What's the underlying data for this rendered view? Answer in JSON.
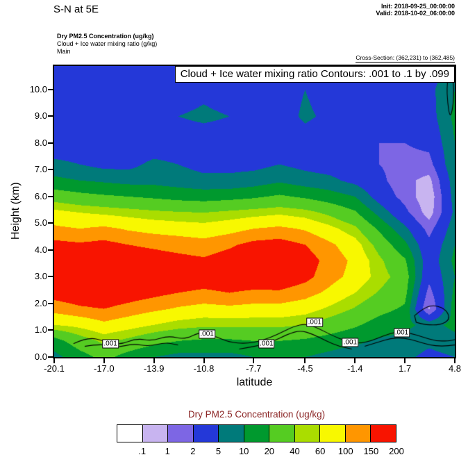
{
  "header": {
    "title": "S-N at 5E",
    "init_time": "Init: 2018-09-25_00:00:00",
    "valid_time": "Valid: 2018-10-02_06:00:00",
    "field_primary": "Dry PM2.5 Concentration   (ug/kg)",
    "field_secondary": "Cloud + Ice water mixing ratio   (g/kg)",
    "model_name": "Main",
    "cross_section": "Cross-Section: (362,231) to (362,485)"
  },
  "colorbar": {
    "title": "Dry PM2.5 Concentration  (ug/kg)",
    "labels": [
      ".1",
      "1",
      "2",
      "5",
      "10",
      "20",
      "40",
      "60",
      "100",
      "150",
      "200"
    ],
    "colors": [
      "#ffffff",
      "#c8b4f0",
      "#7d66e4",
      "#2438d8",
      "#007a7a",
      "#00992e",
      "#55cc22",
      "#aadd00",
      "#f8f800",
      "#ff9600",
      "#f81400"
    ]
  },
  "chart_data": {
    "type": "heatmap",
    "banner": "Cloud + Ice water mixing ratio Contours: .001 to .1 by .099",
    "xlabel": "latitude",
    "ylabel": "Height (km)",
    "fill_field": "Dry PM2.5 Concentration (ug/kg)",
    "fill_levels": [
      0.1,
      1,
      2,
      5,
      10,
      20,
      40,
      60,
      100,
      150,
      200
    ],
    "xlim": [
      -20.1,
      4.8
    ],
    "ylim": [
      0,
      10.88
    ],
    "x_ticks": [
      {
        "v": -20.1,
        "label": "-20.1"
      },
      {
        "v": -17.0,
        "label": "-17.0"
      },
      {
        "v": -13.9,
        "label": "-13.9"
      },
      {
        "v": -10.8,
        "label": "-10.8"
      },
      {
        "v": -7.7,
        "label": "-7.7"
      },
      {
        "v": -4.5,
        "label": "-4.5"
      },
      {
        "v": -1.4,
        "label": "-1.4"
      },
      {
        "v": 1.7,
        "label": "1.7"
      },
      {
        "v": 4.8,
        "label": "4.8"
      }
    ],
    "y_ticks": [
      {
        "v": 0,
        "label": "0.0"
      },
      {
        "v": 1,
        "label": "1.0"
      },
      {
        "v": 2,
        "label": "2.0"
      },
      {
        "v": 3,
        "label": "3.0"
      },
      {
        "v": 4,
        "label": "4.0"
      },
      {
        "v": 5,
        "label": "5.0"
      },
      {
        "v": 6,
        "label": "6.0"
      },
      {
        "v": 7,
        "label": "7.0"
      },
      {
        "v": 8,
        "label": "8.0"
      },
      {
        "v": 9,
        "label": "9.0"
      },
      {
        "v": 10,
        "label": "10.0"
      }
    ],
    "grid": {
      "lat": [
        -20.1,
        -18.5,
        -17.0,
        -15.5,
        -13.9,
        -12.4,
        -10.8,
        -9.2,
        -7.7,
        -6.1,
        -4.5,
        -3.0,
        -1.4,
        0.1,
        1.7,
        3.2,
        4.8
      ],
      "height_km": [
        0,
        0.6,
        1.2,
        1.8,
        2.4,
        3.0,
        3.6,
        4.2,
        4.8,
        5.4,
        6.0,
        6.6,
        7.2,
        8.0,
        9.0,
        10.0,
        10.9
      ],
      "values": [
        [
          8,
          15,
          25,
          15,
          10,
          8,
          8,
          8,
          10,
          10,
          10,
          8,
          6,
          5,
          6,
          4,
          5
        ],
        [
          15,
          30,
          45,
          35,
          25,
          20,
          18,
          18,
          20,
          20,
          18,
          15,
          12,
          9,
          8,
          6,
          8
        ],
        [
          60,
          70,
          90,
          75,
          60,
          50,
          45,
          45,
          45,
          45,
          40,
          30,
          22,
          15,
          12,
          8,
          12
        ],
        [
          120,
          140,
          150,
          130,
          110,
          95,
          85,
          90,
          85,
          85,
          75,
          55,
          38,
          25,
          18,
          0.9,
          15
        ],
        [
          180,
          200,
          210,
          190,
          170,
          150,
          140,
          150,
          140,
          140,
          120,
          90,
          60,
          38,
          25,
          1.5,
          12
        ],
        [
          200,
          220,
          230,
          220,
          210,
          195,
          185,
          195,
          200,
          210,
          170,
          120,
          85,
          50,
          30,
          2.5,
          10
        ],
        [
          200,
          200,
          210,
          190,
          180,
          170,
          160,
          185,
          210,
          220,
          185,
          130,
          90,
          45,
          22,
          3,
          12
        ],
        [
          170,
          160,
          170,
          150,
          140,
          130,
          120,
          140,
          170,
          180,
          150,
          110,
          75,
          32,
          12,
          2.5,
          10
        ],
        [
          110,
          100,
          110,
          95,
          85,
          80,
          75,
          85,
          100,
          110,
          95,
          70,
          45,
          18,
          6,
          1.5,
          8
        ],
        [
          70,
          60,
          55,
          50,
          45,
          42,
          40,
          45,
          50,
          55,
          48,
          35,
          22,
          8,
          2.5,
          0.7,
          6
        ],
        [
          30,
          25,
          22,
          20,
          18,
          16,
          15,
          16,
          18,
          22,
          18,
          14,
          10,
          3.5,
          1.5,
          0.6,
          7
        ],
        [
          12,
          10,
          9,
          8,
          8,
          7,
          6,
          6,
          7,
          9,
          7,
          6,
          4,
          2.5,
          1.2,
          0.8,
          8
        ],
        [
          6,
          5,
          4,
          4,
          6,
          5,
          4,
          4,
          4,
          5,
          4,
          3.5,
          3,
          2,
          1.5,
          1.5,
          10
        ],
        [
          3,
          3,
          3,
          3,
          3,
          3,
          3,
          3,
          3,
          3,
          3,
          3,
          2.5,
          2,
          2,
          2.5,
          10
        ],
        [
          3,
          3,
          3,
          3,
          2.5,
          5,
          6,
          5,
          3,
          3,
          6,
          4,
          2.5,
          2.5,
          2.5,
          3.5,
          12
        ],
        [
          3,
          3,
          3,
          3,
          2.5,
          3,
          4,
          3,
          3,
          3,
          5,
          3,
          2.5,
          2.5,
          3,
          4,
          10
        ],
        [
          3,
          3,
          3,
          3,
          2.5,
          2.5,
          2.5,
          2.5,
          2.5,
          2.5,
          2.5,
          2.5,
          2,
          2,
          2.5,
          3,
          8
        ]
      ]
    },
    "cloud_contours": {
      "levels": "0.001 to 0.1 by 0.099",
      "paths": [
        {
          "closed": false,
          "points": [
            [
              -18.9,
              0.5
            ],
            [
              -18.0,
              0.75
            ],
            [
              -17.0,
              0.6
            ],
            [
              -16.0,
              0.45
            ],
            [
              -15.0,
              0.7
            ],
            [
              -14.0,
              0.6
            ],
            [
              -13.0,
              0.8
            ],
            [
              -12.0,
              0.65
            ],
            [
              -11.0,
              0.95
            ],
            [
              -10.2,
              0.8
            ],
            [
              -9.2,
              0.55
            ],
            [
              -8.2,
              0.5
            ],
            [
              -7.2,
              0.6
            ],
            [
              -6.2,
              0.85
            ],
            [
              -5.2,
              1.15
            ],
            [
              -4.4,
              1.25
            ],
            [
              -3.6,
              1.05
            ],
            [
              -2.8,
              0.8
            ],
            [
              -2.0,
              0.6
            ],
            [
              -1.2,
              0.5
            ],
            [
              -0.4,
              0.6
            ],
            [
              0.4,
              0.8
            ],
            [
              1.2,
              0.95
            ],
            [
              2.0,
              0.9
            ],
            [
              2.8,
              0.75
            ],
            [
              3.6,
              0.6
            ],
            [
              4.4,
              0.6
            ],
            [
              4.8,
              0.65
            ]
          ]
        },
        {
          "closed": false,
          "points": [
            [
              -18.2,
              0.4
            ],
            [
              -17.2,
              0.5
            ],
            [
              -16.2,
              0.35
            ],
            [
              -15.2,
              0.5
            ],
            [
              -14.2,
              0.4
            ],
            [
              -13.2,
              0.55
            ],
            [
              -12.4,
              0.45
            ]
          ]
        },
        {
          "closed": false,
          "points": [
            [
              -8.6,
              0.3
            ],
            [
              -7.6,
              0.4
            ],
            [
              -6.6,
              0.55
            ],
            [
              -5.6,
              0.85
            ],
            [
              -4.8,
              1.0
            ],
            [
              -4.0,
              0.85
            ],
            [
              -3.2,
              0.6
            ],
            [
              -2.4,
              0.4
            ],
            [
              -1.6,
              0.3
            ]
          ]
        },
        {
          "closed": false,
          "points": [
            [
              -0.8,
              0.4
            ],
            [
              0.0,
              0.55
            ],
            [
              0.8,
              0.7
            ],
            [
              1.6,
              0.72
            ],
            [
              2.4,
              0.6
            ],
            [
              3.2,
              0.45
            ],
            [
              4.0,
              0.4
            ],
            [
              4.8,
              0.45
            ]
          ]
        },
        {
          "closed": true,
          "points": [
            [
              2.3,
              1.55
            ],
            [
              2.9,
              1.85
            ],
            [
              3.6,
              1.95
            ],
            [
              4.3,
              1.75
            ],
            [
              4.5,
              1.4
            ],
            [
              3.9,
              1.2
            ],
            [
              3.0,
              1.2
            ],
            [
              2.4,
              1.3
            ]
          ]
        },
        {
          "closed": true,
          "points": [
            [
              4.45,
              10.75
            ],
            [
              4.3,
              10.2
            ],
            [
              4.35,
              9.5
            ],
            [
              4.5,
              8.95
            ],
            [
              4.68,
              9.3
            ],
            [
              4.75,
              10.0
            ],
            [
              4.65,
              10.6
            ]
          ]
        }
      ],
      "labels": [
        {
          "text": ".001",
          "lat": -16.6,
          "km": 0.5
        },
        {
          "text": ".001",
          "lat": -10.6,
          "km": 0.85
        },
        {
          "text": ".001",
          "lat": -6.9,
          "km": 0.5
        },
        {
          "text": ".001",
          "lat": -3.9,
          "km": 1.3
        },
        {
          "text": ".001",
          "lat": -1.7,
          "km": 0.55
        },
        {
          "text": ".001",
          "lat": 1.5,
          "km": 0.9
        }
      ]
    }
  }
}
